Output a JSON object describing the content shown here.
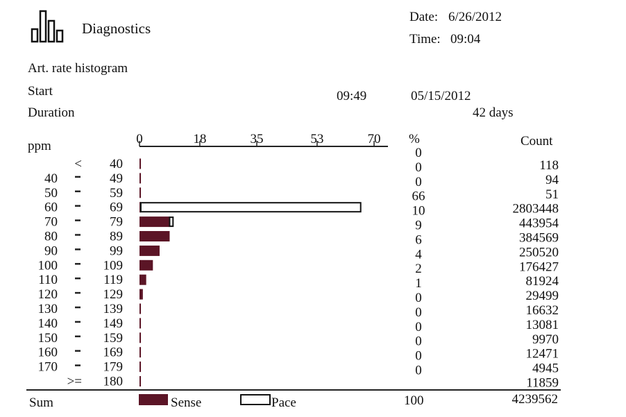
{
  "header": {
    "title": "Diagnostics",
    "date_label": "Date:",
    "date_value": "6/26/2012",
    "time_label": "Time:",
    "time_value": "09:04",
    "logo_icon": "histogram-icon"
  },
  "meta": {
    "heading": "Art. rate histogram",
    "start_label": "Start",
    "start_time": "09:49",
    "start_date": "05/15/2012",
    "duration_label": "Duration",
    "duration_value": "42 days"
  },
  "columns": {
    "ppm": "ppm",
    "percent": "%",
    "count": "Count"
  },
  "footer": {
    "sum_label": "Sum",
    "sense_label": "Sense",
    "pace_label": "Pace",
    "percent_total": "100",
    "count_total": "4239562"
  },
  "colors": {
    "sense": "#5b1526",
    "pace": "#ffffff",
    "line": "#222222"
  },
  "chart_data": {
    "type": "bar",
    "orientation": "horizontal",
    "stacked": true,
    "title": "Art. rate histogram",
    "xlabel": "%",
    "ylabel": "ppm",
    "xlim": [
      0,
      70
    ],
    "x_ticks": [
      "0",
      "18",
      "35",
      "53",
      "70"
    ],
    "categories": [
      {
        "lo": "<",
        "hi": "40"
      },
      {
        "lo": "40",
        "hi": "49"
      },
      {
        "lo": "50",
        "hi": "59"
      },
      {
        "lo": "60",
        "hi": "69"
      },
      {
        "lo": "70",
        "hi": "79"
      },
      {
        "lo": "80",
        "hi": "89"
      },
      {
        "lo": "90",
        "hi": "99"
      },
      {
        "lo": "100",
        "hi": "109"
      },
      {
        "lo": "110",
        "hi": "119"
      },
      {
        "lo": "120",
        "hi": "129"
      },
      {
        "lo": "130",
        "hi": "139"
      },
      {
        "lo": "140",
        "hi": "149"
      },
      {
        "lo": "150",
        "hi": "159"
      },
      {
        "lo": "160",
        "hi": "169"
      },
      {
        "lo": "170",
        "hi": "179"
      },
      {
        "lo": ">=",
        "hi": "180"
      }
    ],
    "series": [
      {
        "name": "Sense",
        "values": [
          0.2,
          0.2,
          0.2,
          0.4,
          9.0,
          9.0,
          6.0,
          4.0,
          2.0,
          1.0,
          0.4,
          0.3,
          0.2,
          0.3,
          0.1,
          0.3
        ]
      },
      {
        "name": "Pace",
        "values": [
          0,
          0,
          0,
          65.6,
          1.0,
          0,
          0,
          0,
          0,
          0,
          0,
          0,
          0,
          0,
          0,
          0
        ]
      }
    ],
    "percent": [
      "0",
      "0",
      "0",
      "66",
      "10",
      "9",
      "6",
      "4",
      "2",
      "1",
      "0",
      "0",
      "0",
      "0",
      "0",
      "0"
    ],
    "count": [
      "118",
      "94",
      "51",
      "2803448",
      "443954",
      "384569",
      "250520",
      "176427",
      "81924",
      "29499",
      "16632",
      "13081",
      "9970",
      "12471",
      "4945",
      "11859"
    ]
  }
}
